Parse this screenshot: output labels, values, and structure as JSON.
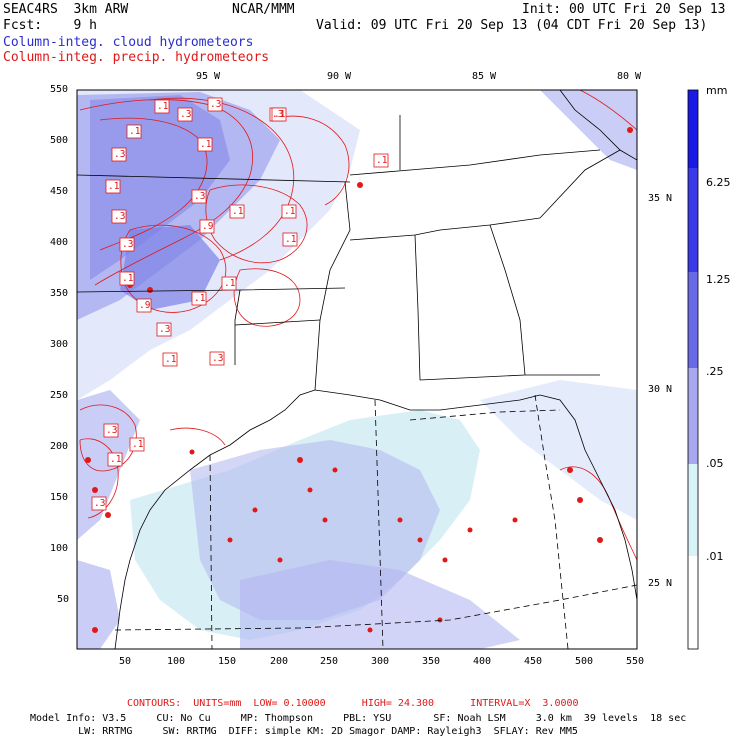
{
  "header": {
    "model": "SEAC4RS  3km ARW",
    "center": "NCAR/MMM",
    "init": "Init: 00 UTC Fri 20 Sep 13",
    "fcst": "Fcst:    9 h",
    "valid": "Valid: 09 UTC Fri 20 Sep 13 (04 CDT Fri 20 Sep 13)",
    "field1": "Column-integ. cloud hydrometeors",
    "field2": "Column-integ. precip. hydrometeors"
  },
  "map": {
    "top_lon_labels": [
      "95 W",
      "90 W",
      "85 W",
      "80 W"
    ],
    "right_lat_labels": [
      "35 N",
      "30 N",
      "25 N"
    ],
    "left_ticks": [
      "550",
      "500",
      "450",
      "400",
      "350",
      "300",
      "250",
      "200",
      "150",
      "100",
      "50"
    ],
    "bottom_ticks": [
      "50",
      "100",
      "150",
      "200",
      "250",
      "300",
      "350",
      "400",
      "450",
      "500",
      "550"
    ],
    "contour_labels": [
      ".1",
      ".3",
      ".1",
      ".3",
      ".3",
      ".3",
      ".3",
      ".1",
      ".1",
      ".3",
      ".1",
      ".9",
      ".3",
      ".1",
      ".1",
      ".1",
      ".1",
      ".3",
      ".9",
      ".1",
      ".3",
      ".1",
      ".3",
      ".1",
      ".1",
      ".3",
      ".1",
      ".1"
    ]
  },
  "colorbar": {
    "unit": "mm",
    "labels": [
      "6.25",
      "1.25",
      ".25",
      ".05",
      ".01"
    ],
    "colors": [
      "#1a1ae6",
      "#3a3ae8",
      "#6a6ae8",
      "#a8a8f0",
      "#d8f4f8",
      "#ffffff"
    ]
  },
  "footer": {
    "contours_label": "CONTOURS:  UNITS=mm  LOW= 0.10000      HIGH= 24.300      INTERVAL=X  3.0000",
    "model_info": "Model Info: V3.5     CU: No Cu     MP: Thompson     PBL: YSU       SF: Noah LSM     3.0 km  39 levels  18 sec",
    "model_info2": "        LW: RRTMG     SW: RRTMG  DIFF: simple KM: 2D Smagor DAMP: Rayleigh3  SFLAY: Rev MM5"
  }
}
